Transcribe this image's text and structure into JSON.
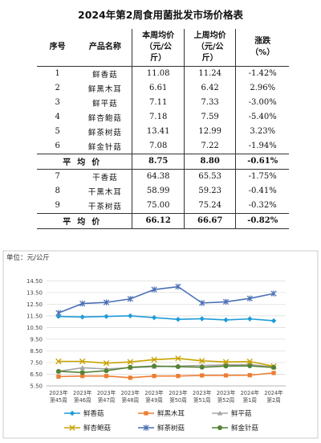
{
  "title": "2024年第2周食用菌批发市场价格表",
  "table": {
    "headers": {
      "no": "序号",
      "name": "产品名称",
      "this_week": [
        "本周均价",
        "（元/公",
        "斤）"
      ],
      "last_week": [
        "上周均价",
        "（元/公",
        "斤）"
      ],
      "change": [
        "涨跌",
        "（%）"
      ]
    },
    "rows": [
      {
        "no": "1",
        "name": "鲜香菇",
        "this": "11.08",
        "last": "11.24",
        "chg": "-1.42%"
      },
      {
        "no": "2",
        "name": "鲜黑木耳",
        "this": "6.61",
        "last": "6.42",
        "chg": "2.96%"
      },
      {
        "no": "3",
        "name": "鲜平菇",
        "this": "7.11",
        "last": "7.33",
        "chg": "-3.00%"
      },
      {
        "no": "4",
        "name": "鲜杏鲍菇",
        "this": "7.18",
        "last": "7.59",
        "chg": "-5.40%"
      },
      {
        "no": "5",
        "name": "鲜茶树菇",
        "this": "13.41",
        "last": "12.99",
        "chg": "3.23%"
      },
      {
        "no": "6",
        "name": "鲜金针菇",
        "this": "7.08",
        "last": "7.22",
        "chg": "-1.94%"
      }
    ],
    "avg1": {
      "label": "平均价",
      "this": "8.75",
      "last": "8.80",
      "chg": "-0.61%"
    },
    "rows2": [
      {
        "no": "7",
        "name": "干香菇",
        "this": "64.38",
        "last": "65.53",
        "chg": "-1.75%"
      },
      {
        "no": "8",
        "name": "干黑木耳",
        "this": "58.99",
        "last": "59.23",
        "chg": "-0.41%"
      },
      {
        "no": "9",
        "name": "干茶树菇",
        "this": "75.00",
        "last": "75.24",
        "chg": "-0.32%"
      }
    ],
    "avg2": {
      "label": "平均价",
      "this": "66.12",
      "last": "66.67",
      "chg": "-0.82%"
    }
  },
  "chart_data": {
    "type": "line",
    "unit_label": "单位：元/公斤",
    "categories": [
      [
        "2023年",
        "第45周"
      ],
      [
        "2023年",
        "第46周"
      ],
      [
        "2023年",
        "第47周"
      ],
      [
        "2023年",
        "第48周"
      ],
      [
        "2023年",
        "第49周"
      ],
      [
        "2023年",
        "第50周"
      ],
      [
        "2023年",
        "第51周"
      ],
      [
        "2023年",
        "第52周"
      ],
      [
        "2024年",
        "第1周"
      ],
      [
        "2024年",
        "第2周"
      ]
    ],
    "ylim": [
      5.5,
      15.0
    ],
    "yticks": [
      "5.50",
      "6.50",
      "7.50",
      "8.50",
      "9.50",
      "10.50",
      "11.50",
      "12.50",
      "13.50",
      "14.50"
    ],
    "grid": true,
    "legend_position": "bottom",
    "series": [
      {
        "name": "鲜香菇",
        "color": "#1f9bd7",
        "marker": "diamond",
        "values": [
          11.45,
          11.4,
          11.45,
          11.5,
          11.35,
          11.2,
          11.25,
          11.15,
          11.24,
          11.08
        ]
      },
      {
        "name": "鲜黑木耳",
        "color": "#ed7d31",
        "marker": "square",
        "values": [
          6.3,
          6.35,
          6.35,
          6.2,
          6.35,
          6.35,
          6.4,
          6.4,
          6.42,
          6.61
        ]
      },
      {
        "name": "鲜平菇",
        "color": "#a5a5a5",
        "marker": "triangle",
        "values": [
          6.75,
          7.05,
          6.95,
          7.05,
          7.15,
          7.2,
          7.25,
          7.3,
          7.33,
          7.11
        ]
      },
      {
        "name": "鲜杏鲍菇",
        "color": "#c8a200",
        "marker": "x",
        "values": [
          7.6,
          7.6,
          7.45,
          7.55,
          7.75,
          7.85,
          7.65,
          7.55,
          7.59,
          7.18
        ]
      },
      {
        "name": "鲜茶树菇",
        "color": "#4a6fb5",
        "marker": "star",
        "values": [
          11.75,
          12.55,
          12.65,
          12.95,
          13.75,
          14.0,
          12.6,
          12.7,
          12.99,
          13.41
        ]
      },
      {
        "name": "鲜金针菇",
        "color": "#548235",
        "marker": "circle",
        "values": [
          6.75,
          6.65,
          6.8,
          7.1,
          7.2,
          7.15,
          7.1,
          7.2,
          7.22,
          7.08
        ]
      }
    ]
  }
}
